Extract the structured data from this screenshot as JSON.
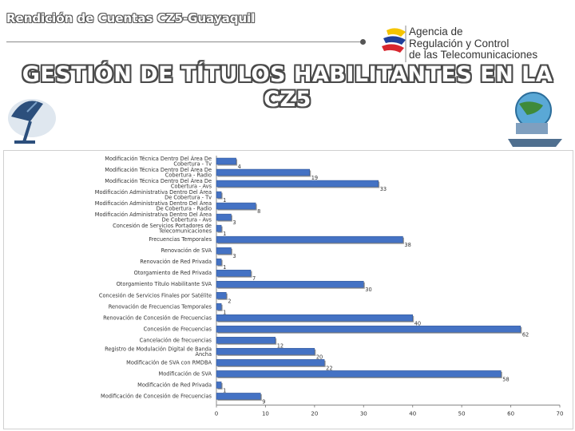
{
  "header": {
    "title": "Rendición de Cuentas CZ5-Guayaquil"
  },
  "logo": {
    "line1": "Agencia de",
    "line2": "Regulación y Control",
    "line3": "de las Telecomunicaciones",
    "colors": [
      "#f5c400",
      "#1f3f9a",
      "#d7262e"
    ]
  },
  "main_title": "GESTIÓN DE TÍTULOS HABILITANTES EN LA CZ5",
  "chart_data": {
    "type": "bar",
    "orientation": "horizontal",
    "categories": [
      "Modificación Técnica Dentro Del Área De Cobertura - Tv",
      "Modificación Técnica Dentro Del Área De Cobertura - Radio",
      "Modificación Técnica Dentro Del Área De Cobertura - Avs",
      "Modificación Administrativa Dentro Del Área De Cobertura - Tv",
      "Modificación Administrativa Dentro Del Área De Cobertura - Radio",
      "Modificación Administrativa Dentro Del Área De Cobertura - Avs",
      "Concesión de Servicios Portadores de Telecomunicaciones",
      "Frecuencias Temporales",
      "Renovación de SVA",
      "Renovación de Red Privada",
      "Otorgamiento de Red Privada",
      "Otorgamiento Título Habilitante SVA",
      "Concesión de Servicios Finales por Satélite",
      "Renovación de Frecuencias Temporales",
      "Renovación de Concesión de Frecuencias",
      "Concesión de Frecuencias",
      "Cancelación de frecuencias",
      "Registro de Modulación Digital de Banda Ancha",
      "Modificación de SVA con RMDBA",
      "Modificación de SVA",
      "Modificación de Red Privada",
      "Modificación de Concesión de Frecuencias"
    ],
    "values": [
      4,
      19,
      33,
      1,
      8,
      3,
      1,
      38,
      3,
      1,
      7,
      30,
      2,
      1,
      40,
      62,
      12,
      20,
      22,
      58,
      1,
      9
    ],
    "xlim": [
      0,
      70
    ],
    "xticks": [
      0,
      10,
      20,
      30,
      40,
      50,
      60,
      70
    ],
    "bar_color": "#4472c4",
    "title": "",
    "xlabel": "",
    "ylabel": ""
  }
}
